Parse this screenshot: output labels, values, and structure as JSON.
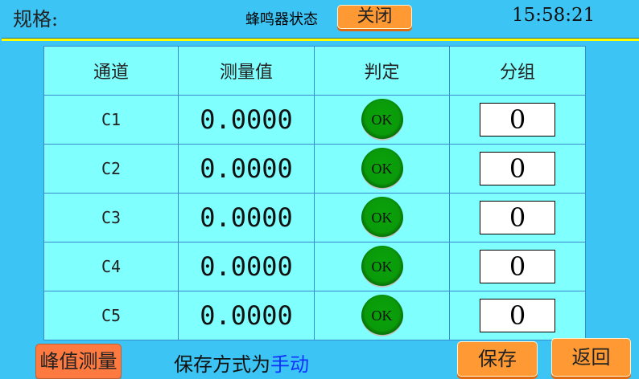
{
  "header": {
    "spec_label": "规格:",
    "buzzer_label": "蜂鸣器状态",
    "buzzer_state": "关闭",
    "time": "15:58:21"
  },
  "table": {
    "columns": [
      "通道",
      "测量值",
      "判定",
      "分组"
    ],
    "rows": [
      {
        "channel": "C1",
        "value": "0.0000",
        "judgement": "OK",
        "group": "0"
      },
      {
        "channel": "C2",
        "value": "0.0000",
        "judgement": "OK",
        "group": "0"
      },
      {
        "channel": "C3",
        "value": "0.0000",
        "judgement": "OK",
        "group": "0"
      },
      {
        "channel": "C4",
        "value": "0.0000",
        "judgement": "OK",
        "group": "0"
      },
      {
        "channel": "C5",
        "value": "0.0000",
        "judgement": "OK",
        "group": "0"
      }
    ]
  },
  "footer": {
    "peak_button": "峰值测量",
    "mode_prefix": "保存方式为",
    "mode_value": "手动",
    "save_button": "保存",
    "back_button": "返回"
  },
  "colors": {
    "background": "#3cc4f4",
    "table": "#80ffff",
    "button": "#ff9933",
    "ok_lamp": "#0a9a0a",
    "mode_value": "#1030ff"
  }
}
